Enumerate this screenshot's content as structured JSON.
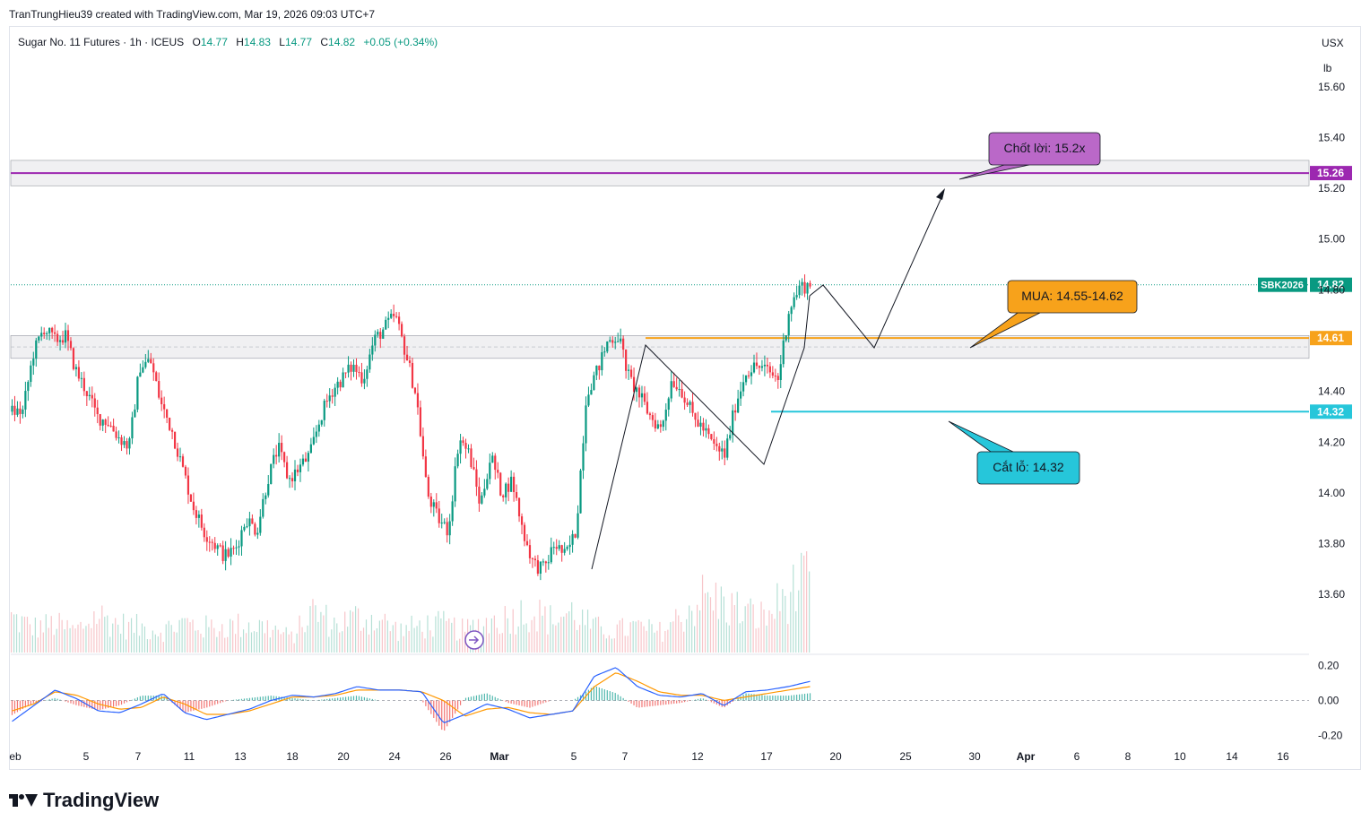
{
  "header": {
    "credit": "TranTrungHieu39 created with TradingView.com, Mar 19, 2026 09:03 UTC+7"
  },
  "legend": {
    "symbol": "Sugar No. 11 Futures · 1h · ICEUS",
    "open_key": "O",
    "open": "14.77",
    "high_key": "H",
    "high": "14.83",
    "low_key": "L",
    "low": "14.77",
    "close_key": "C",
    "close": "14.82",
    "change": "+0.05 (+0.34%)"
  },
  "price_axis": {
    "currency": "USX",
    "unit": "lb"
  },
  "footer": {
    "brand": "TradingView"
  },
  "colors": {
    "up": "#089981",
    "down": "#f23645",
    "target": "#9c27b0",
    "entry": "#f7a21b",
    "stop": "#26c6da",
    "macd": "#2962ff",
    "signal": "#ff9800"
  },
  "chart_data": {
    "type": "candlestick",
    "price_range": [
      13.47,
      15.73
    ],
    "price_ticks": [
      "15.60",
      "15.40",
      "15.20",
      "15.00",
      "14.80",
      "14.40",
      "14.20",
      "14.00",
      "13.80",
      "13.60"
    ],
    "time_labels": [
      "eb",
      "5",
      "7",
      "11",
      "13",
      "18",
      "20",
      "24",
      "26",
      "Mar",
      "5",
      "7",
      "12",
      "17",
      "20",
      "25",
      "30",
      "Apr",
      "6",
      "8",
      "10",
      "14",
      "16"
    ],
    "price_anchors": [
      [
        14.32,
        14.32
      ],
      [
        14.55,
        14.65
      ],
      [
        14.6,
        14.62
      ],
      [
        14.48,
        14.4
      ],
      [
        14.3,
        14.28
      ],
      [
        14.22,
        14.18
      ],
      [
        14.5,
        14.52
      ],
      [
        14.35,
        14.25
      ],
      [
        14.1,
        13.95
      ],
      [
        13.85,
        13.8
      ],
      [
        13.75,
        13.78
      ],
      [
        13.9,
        13.85
      ],
      [
        14.05,
        14.18
      ],
      [
        14.05,
        14.1
      ],
      [
        14.15,
        14.3
      ],
      [
        14.4,
        14.45
      ],
      [
        14.5,
        14.45
      ],
      [
        14.6,
        14.65
      ],
      [
        14.7,
        14.55
      ],
      [
        14.38,
        14.0
      ],
      [
        13.9,
        13.85
      ],
      [
        14.22,
        14.15
      ],
      [
        13.95,
        14.15
      ],
      [
        14.0,
        14.05
      ],
      [
        13.85,
        13.72
      ],
      [
        13.7,
        13.8
      ],
      [
        13.75,
        13.85
      ],
      [
        14.4,
        14.48
      ],
      [
        14.6,
        14.62
      ],
      [
        14.45,
        14.38
      ],
      [
        14.3,
        14.25
      ],
      [
        14.45,
        14.4
      ],
      [
        14.3,
        14.25
      ],
      [
        14.18,
        14.15
      ],
      [
        14.35,
        14.48
      ],
      [
        14.5,
        14.48
      ],
      [
        14.45,
        14.72
      ],
      [
        14.81,
        14.82
      ]
    ],
    "volume_range": [
      0,
      1
    ],
    "volume_anchors": [
      0.35,
      0.25,
      0.28,
      0.22,
      0.38,
      0.28,
      0.25,
      0.22,
      0.3,
      0.25,
      0.26,
      0.28,
      0.25,
      0.15,
      0.42,
      0.28,
      0.35,
      0.33,
      0.22,
      0.27,
      0.28,
      0.22,
      0.3,
      0.35,
      0.42,
      0.33,
      0.4,
      0.25,
      0.22,
      0.26,
      0.2,
      0.35,
      0.55,
      0.5,
      0.4,
      0.35,
      0.6,
      0.7
    ],
    "macd_range": [
      -0.25,
      0.25
    ],
    "macd_ticks": [
      "0.20",
      "0.00",
      "-0.20"
    ],
    "macd_anchors": [
      -0.12,
      -0.03,
      0.06,
      0.01,
      -0.06,
      -0.07,
      -0.02,
      0.04,
      -0.07,
      -0.11,
      -0.08,
      -0.05,
      0.0,
      0.03,
      0.02,
      0.04,
      0.08,
      0.06,
      0.06,
      0.05,
      -0.13,
      -0.08,
      -0.02,
      -0.05,
      -0.1,
      -0.08,
      -0.06,
      0.14,
      0.19,
      0.08,
      0.03,
      0.02,
      0.04,
      -0.03,
      0.05,
      0.06,
      0.08,
      0.11
    ],
    "signal_anchors": [
      -0.06,
      -0.02,
      0.05,
      0.03,
      -0.02,
      -0.05,
      -0.04,
      0.02,
      -0.02,
      -0.08,
      -0.08,
      -0.06,
      -0.02,
      0.02,
      0.02,
      0.03,
      0.06,
      0.06,
      0.06,
      0.05,
      0.0,
      -0.09,
      -0.05,
      -0.04,
      -0.07,
      -0.08,
      -0.06,
      0.08,
      0.16,
      0.11,
      0.05,
      0.03,
      0.03,
      0.0,
      0.02,
      0.04,
      0.06,
      0.08
    ],
    "horizontal_levels": [
      {
        "price": 15.26,
        "label": "15.26",
        "color": "#9c27b0"
      },
      {
        "price": 14.82,
        "label": "14.82",
        "tag": "SBK2026",
        "color": "#089981"
      },
      {
        "price": 14.61,
        "label": "14.61",
        "color": "#f7a21b"
      },
      {
        "price": 14.32,
        "label": "14.32",
        "color": "#26c6da"
      }
    ],
    "zones": [
      {
        "from": 15.21,
        "to": 15.31
      },
      {
        "from": 14.53,
        "to": 14.62
      }
    ],
    "annotations": [
      {
        "text": "Chốt lời: 15.2x",
        "color": "#ba68c8"
      },
      {
        "text": "MUA: 14.55-14.62",
        "color": "#f7a21b"
      },
      {
        "text": "Cắt lỗ: 14.32",
        "color": "#26c6da"
      }
    ],
    "projection_path": [
      [
        14.82,
        14.87
      ],
      [
        14.61,
        15.23
      ]
    ]
  }
}
